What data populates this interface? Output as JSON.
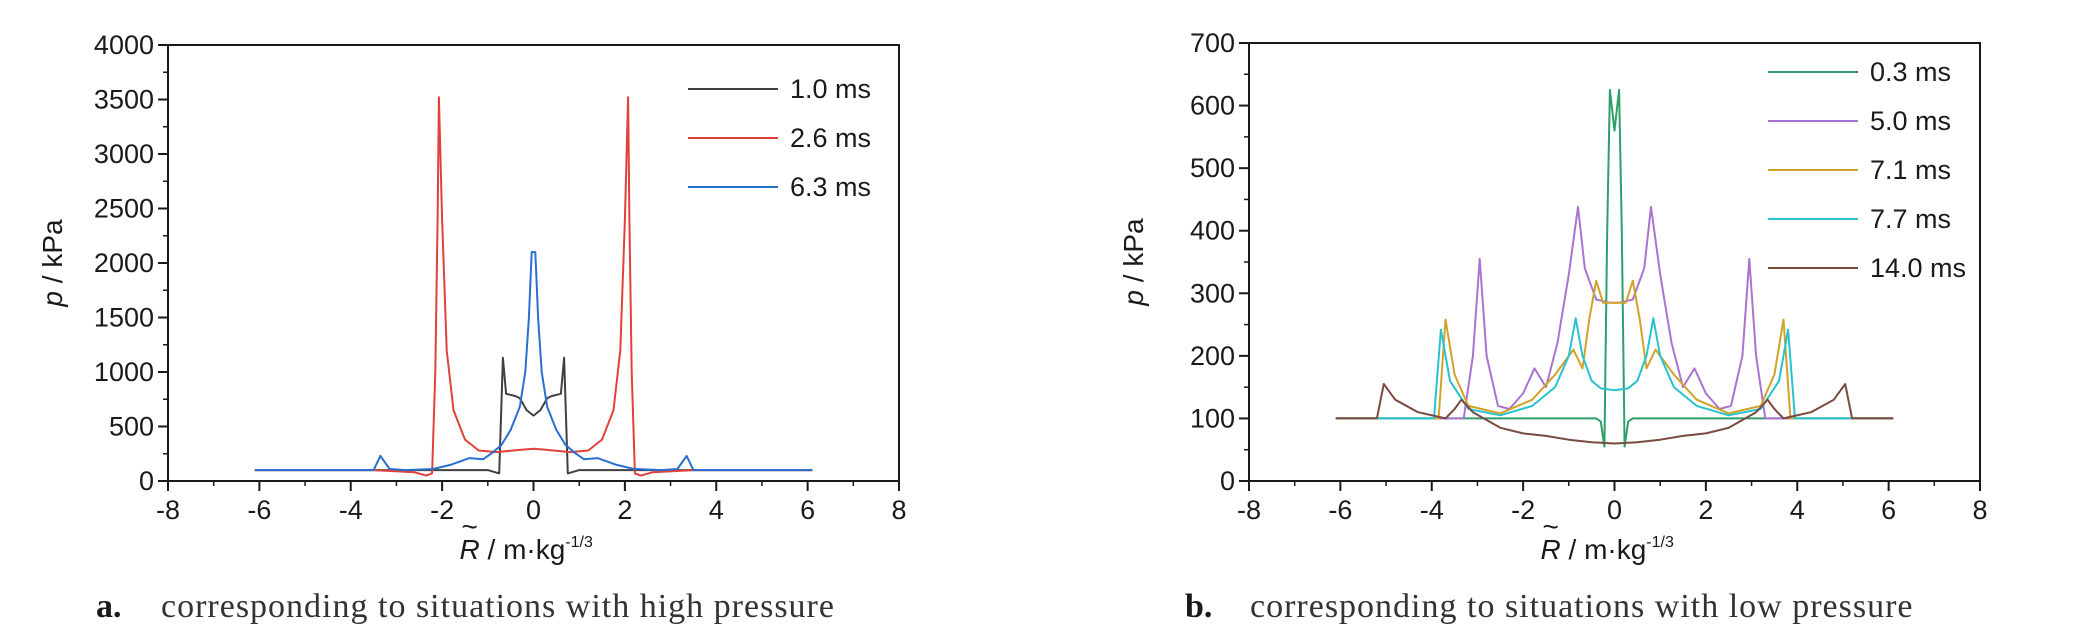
{
  "captions": [
    {
      "letter": "a.",
      "text": "corresponding to situations with high pressure"
    },
    {
      "letter": "b.",
      "text": "corresponding to situations with low pressure"
    }
  ],
  "chart_data": [
    {
      "type": "line",
      "ylabel_italic": "p",
      "ylabel_rest": " / kPa",
      "xlabel_main": " / m·kg",
      "xlabel_sup": "-1/3",
      "xlabel_symbol": "R",
      "xlim": [
        -8,
        8
      ],
      "ylim": [
        0,
        4000
      ],
      "xticks": [
        -8,
        -6,
        -4,
        -2,
        0,
        2,
        4,
        6,
        8
      ],
      "yticks": [
        0,
        500,
        1000,
        1500,
        2000,
        2500,
        3000,
        3500,
        4000
      ],
      "legend_position": "top-right",
      "series": [
        {
          "name": "1.0 ms",
          "color": "#404040",
          "points": [
            [
              -6.1,
              100
            ],
            [
              -1.0,
              100
            ],
            [
              -0.75,
              70
            ],
            [
              -0.67,
              1130
            ],
            [
              -0.6,
              800
            ],
            [
              -0.4,
              780
            ],
            [
              -0.3,
              760
            ],
            [
              -0.15,
              650
            ],
            [
              0,
              600
            ],
            [
              0.15,
              650
            ],
            [
              0.3,
              760
            ],
            [
              0.4,
              780
            ],
            [
              0.6,
              800
            ],
            [
              0.67,
              1130
            ],
            [
              0.75,
              70
            ],
            [
              1.0,
              100
            ],
            [
              6.1,
              100
            ]
          ]
        },
        {
          "name": "2.6 ms",
          "color": "#e0413a",
          "points": [
            [
              -6.1,
              100
            ],
            [
              -3.5,
              100
            ],
            [
              -2.6,
              80
            ],
            [
              -2.35,
              50
            ],
            [
              -2.22,
              70
            ],
            [
              -2.15,
              1000
            ],
            [
              -2.1,
              2400
            ],
            [
              -2.07,
              3520
            ],
            [
              -2.0,
              2400
            ],
            [
              -1.9,
              1200
            ],
            [
              -1.75,
              650
            ],
            [
              -1.5,
              380
            ],
            [
              -1.2,
              280
            ],
            [
              -0.8,
              265
            ],
            [
              -0.3,
              285
            ],
            [
              0,
              295
            ],
            [
              0.3,
              285
            ],
            [
              0.8,
              265
            ],
            [
              1.2,
              280
            ],
            [
              1.5,
              380
            ],
            [
              1.75,
              650
            ],
            [
              1.9,
              1200
            ],
            [
              2.0,
              2400
            ],
            [
              2.07,
              3520
            ],
            [
              2.1,
              2400
            ],
            [
              2.15,
              1000
            ],
            [
              2.22,
              70
            ],
            [
              2.35,
              50
            ],
            [
              2.6,
              80
            ],
            [
              3.5,
              100
            ],
            [
              6.1,
              100
            ]
          ]
        },
        {
          "name": "6.3 ms",
          "color": "#2a6fcf",
          "points": [
            [
              -6.1,
              100
            ],
            [
              -3.5,
              100
            ],
            [
              -3.35,
              230
            ],
            [
              -3.15,
              110
            ],
            [
              -2.8,
              100
            ],
            [
              -2.2,
              110
            ],
            [
              -1.8,
              150
            ],
            [
              -1.4,
              210
            ],
            [
              -1.1,
              200
            ],
            [
              -0.9,
              260
            ],
            [
              -0.7,
              330
            ],
            [
              -0.5,
              470
            ],
            [
              -0.3,
              680
            ],
            [
              -0.18,
              1000
            ],
            [
              -0.1,
              1500
            ],
            [
              -0.04,
              2100
            ],
            [
              0,
              2100
            ],
            [
              0.04,
              2100
            ],
            [
              0.1,
              1500
            ],
            [
              0.18,
              1000
            ],
            [
              0.3,
              680
            ],
            [
              0.5,
              470
            ],
            [
              0.7,
              330
            ],
            [
              0.9,
              260
            ],
            [
              1.1,
              200
            ],
            [
              1.4,
              210
            ],
            [
              1.8,
              150
            ],
            [
              2.2,
              110
            ],
            [
              2.8,
              100
            ],
            [
              3.15,
              110
            ],
            [
              3.35,
              230
            ],
            [
              3.5,
              100
            ],
            [
              6.1,
              100
            ]
          ]
        }
      ]
    },
    {
      "type": "line",
      "ylabel_italic": "p",
      "ylabel_rest": " / kPa",
      "xlabel_main": " / m·kg",
      "xlabel_sup": "-1/3",
      "xlabel_symbol": "R",
      "xlim": [
        -8,
        8
      ],
      "ylim": [
        0,
        700
      ],
      "xticks": [
        -8,
        -6,
        -4,
        -2,
        0,
        2,
        4,
        6,
        8
      ],
      "yticks": [
        0,
        100,
        200,
        300,
        400,
        500,
        600,
        700
      ],
      "legend_position": "top-right",
      "series": [
        {
          "name": "0.3 ms",
          "color": "#2e9e6b",
          "points": [
            [
              -6.1,
              100
            ],
            [
              -0.4,
              100
            ],
            [
              -0.3,
              95
            ],
            [
              -0.22,
              55
            ],
            [
              -0.16,
              400
            ],
            [
              -0.1,
              625
            ],
            [
              0,
              560
            ],
            [
              0.1,
              625
            ],
            [
              0.16,
              400
            ],
            [
              0.22,
              55
            ],
            [
              0.3,
              95
            ],
            [
              0.4,
              100
            ],
            [
              6.1,
              100
            ]
          ]
        },
        {
          "name": "5.0 ms",
          "color": "#a874d0",
          "points": [
            [
              -6.1,
              100
            ],
            [
              -3.3,
              100
            ],
            [
              -3.1,
              200
            ],
            [
              -2.95,
              355
            ],
            [
              -2.8,
              200
            ],
            [
              -2.55,
              120
            ],
            [
              -2.3,
              115
            ],
            [
              -2.0,
              140
            ],
            [
              -1.75,
              180
            ],
            [
              -1.5,
              150
            ],
            [
              -1.25,
              220
            ],
            [
              -1.0,
              330
            ],
            [
              -0.8,
              438
            ],
            [
              -0.65,
              340
            ],
            [
              -0.4,
              290
            ],
            [
              -0.1,
              285
            ],
            [
              0,
              285
            ],
            [
              0.1,
              285
            ],
            [
              0.4,
              290
            ],
            [
              0.65,
              340
            ],
            [
              0.8,
              438
            ],
            [
              1.0,
              330
            ],
            [
              1.25,
              220
            ],
            [
              1.5,
              150
            ],
            [
              1.75,
              180
            ],
            [
              2.0,
              140
            ],
            [
              2.3,
              115
            ],
            [
              2.55,
              120
            ],
            [
              2.8,
              200
            ],
            [
              2.95,
              355
            ],
            [
              3.1,
              200
            ],
            [
              3.3,
              100
            ],
            [
              6.1,
              100
            ]
          ]
        },
        {
          "name": "7.1 ms",
          "color": "#d1a32a",
          "points": [
            [
              -6.1,
              100
            ],
            [
              -3.85,
              100
            ],
            [
              -3.7,
              258
            ],
            [
              -3.5,
              170
            ],
            [
              -3.2,
              120
            ],
            [
              -2.5,
              108
            ],
            [
              -1.8,
              130
            ],
            [
              -1.3,
              170
            ],
            [
              -0.9,
              210
            ],
            [
              -0.7,
              180
            ],
            [
              -0.55,
              260
            ],
            [
              -0.4,
              320
            ],
            [
              -0.25,
              285
            ],
            [
              0,
              285
            ],
            [
              0.25,
              285
            ],
            [
              0.4,
              320
            ],
            [
              0.55,
              260
            ],
            [
              0.7,
              180
            ],
            [
              0.9,
              210
            ],
            [
              1.3,
              170
            ],
            [
              1.8,
              130
            ],
            [
              2.5,
              108
            ],
            [
              3.2,
              120
            ],
            [
              3.5,
              170
            ],
            [
              3.7,
              258
            ],
            [
              3.85,
              100
            ],
            [
              6.1,
              100
            ]
          ]
        },
        {
          "name": "7.7 ms",
          "color": "#27c3cf",
          "points": [
            [
              -6.1,
              100
            ],
            [
              -3.95,
              100
            ],
            [
              -3.8,
              242
            ],
            [
              -3.6,
              160
            ],
            [
              -3.2,
              115
            ],
            [
              -2.5,
              105
            ],
            [
              -1.8,
              120
            ],
            [
              -1.3,
              150
            ],
            [
              -1.0,
              200
            ],
            [
              -0.85,
              260
            ],
            [
              -0.7,
              200
            ],
            [
              -0.5,
              160
            ],
            [
              -0.3,
              148
            ],
            [
              0,
              145
            ],
            [
              0.3,
              148
            ],
            [
              0.5,
              160
            ],
            [
              0.7,
              200
            ],
            [
              0.85,
              260
            ],
            [
              1.0,
              200
            ],
            [
              1.3,
              150
            ],
            [
              1.8,
              120
            ],
            [
              2.5,
              105
            ],
            [
              3.2,
              115
            ],
            [
              3.6,
              160
            ],
            [
              3.8,
              242
            ],
            [
              3.95,
              100
            ],
            [
              6.1,
              100
            ]
          ]
        },
        {
          "name": "14.0 ms",
          "color": "#7a4a3f",
          "points": [
            [
              -6.1,
              100
            ],
            [
              -5.2,
              100
            ],
            [
              -5.05,
              155
            ],
            [
              -4.8,
              130
            ],
            [
              -4.3,
              110
            ],
            [
              -3.7,
              100
            ],
            [
              -3.5,
              115
            ],
            [
              -3.35,
              130
            ],
            [
              -3.1,
              110
            ],
            [
              -2.5,
              85
            ],
            [
              -2.0,
              76
            ],
            [
              -1.5,
              72
            ],
            [
              -1.0,
              66
            ],
            [
              -0.5,
              62
            ],
            [
              0,
              60
            ],
            [
              0.5,
              62
            ],
            [
              1.0,
              66
            ],
            [
              1.5,
              72
            ],
            [
              2.0,
              76
            ],
            [
              2.5,
              85
            ],
            [
              3.1,
              110
            ],
            [
              3.35,
              130
            ],
            [
              3.5,
              115
            ],
            [
              3.7,
              100
            ],
            [
              4.3,
              110
            ],
            [
              4.8,
              130
            ],
            [
              5.05,
              155
            ],
            [
              5.2,
              100
            ],
            [
              6.1,
              100
            ]
          ]
        }
      ]
    }
  ]
}
